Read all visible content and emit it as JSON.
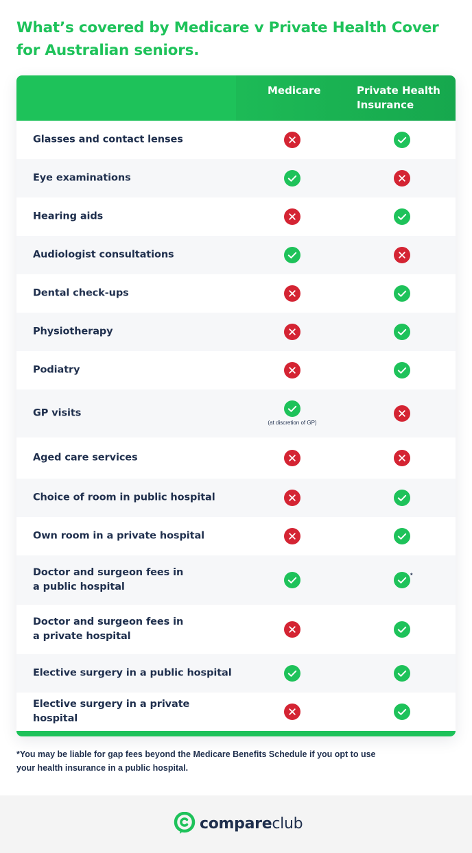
{
  "title_line1": "What’s covered by Medicare v Private Health Cover",
  "title_line2": "for Australian seniors.",
  "colors": {
    "accent": "#1ec25a",
    "yes": "#1ec25a",
    "no": "#d42433",
    "text": "#1f2f4d"
  },
  "header": {
    "medicare": "Medicare",
    "private_line1": "Private Health",
    "private_line2": "Insurance"
  },
  "rows": [
    {
      "line1": "Glasses and contact lenses",
      "line2": "",
      "medicare": "no",
      "private": "yes"
    },
    {
      "line1": "Eye examinations",
      "line2": "",
      "medicare": "yes",
      "private": "no"
    },
    {
      "line1": "Hearing aids",
      "line2": "",
      "medicare": "no",
      "private": "yes"
    },
    {
      "line1": "Audiologist consultations",
      "line2": "",
      "medicare": "yes",
      "private": "no"
    },
    {
      "line1": "Dental check-ups",
      "line2": "",
      "medicare": "no",
      "private": "yes"
    },
    {
      "line1": "Physiotherapy",
      "line2": "",
      "medicare": "no",
      "private": "yes"
    },
    {
      "line1": "Podiatry",
      "line2": "",
      "medicare": "no",
      "private": "yes"
    },
    {
      "line1": "GP visits",
      "line2": "",
      "medicare": "yes",
      "private": "no",
      "medicare_note": "(at discretion of GP)"
    },
    {
      "line1": "Aged care services",
      "line2": "",
      "medicare": "no",
      "private": "no"
    },
    {
      "line1": "Choice of room in public hospital",
      "line2": "",
      "medicare": "no",
      "private": "yes"
    },
    {
      "line1": "Own room in a private hospital",
      "line2": "",
      "medicare": "no",
      "private": "yes"
    },
    {
      "line1": "Doctor and surgeon fees in",
      "line2": "a public hospital",
      "medicare": "yes",
      "private": "yes",
      "private_mark": "*"
    },
    {
      "line1": "Doctor and surgeon fees in",
      "line2": "a private hospital",
      "medicare": "no",
      "private": "yes"
    },
    {
      "line1": "Elective surgery in a public hospital",
      "line2": "",
      "medicare": "yes",
      "private": "yes"
    },
    {
      "line1": "Elective surgery in a private hospital",
      "line2": "",
      "medicare": "no",
      "private": "yes"
    }
  ],
  "footnote_line1": "*You may be liable for gap fees beyond the Medicare Benefits Schedule if you opt to use",
  "footnote_line2": "your health insurance in a public hospital.",
  "brand": {
    "bold": "compare",
    "light": "club",
    "icon": "compareclub-logo-icon"
  }
}
